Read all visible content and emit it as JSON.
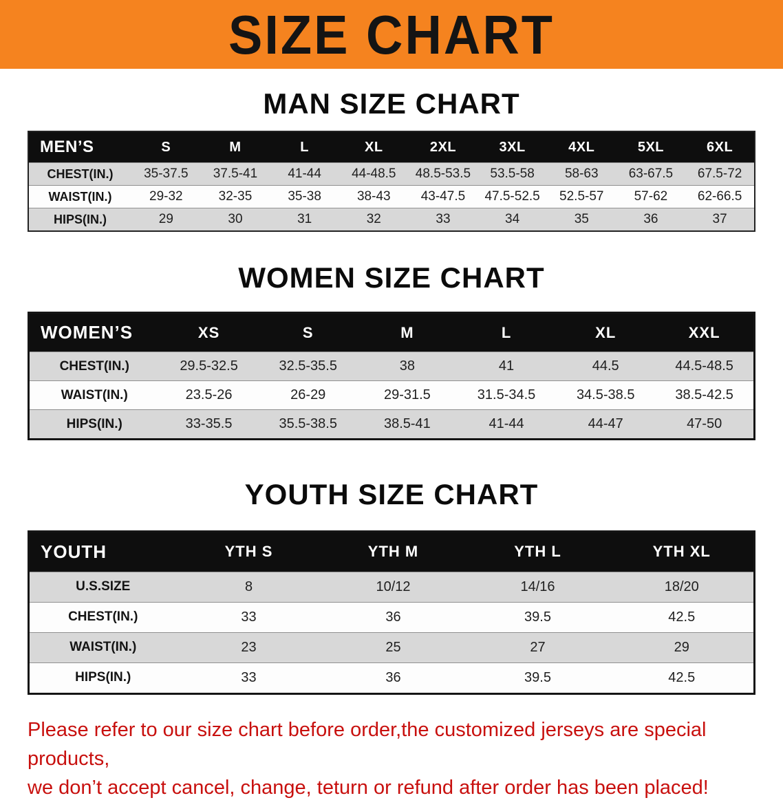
{
  "banner": {
    "title": "SIZE CHART",
    "bg_color": "#f5831f",
    "text_color": "#141414"
  },
  "colors": {
    "header_row_bg": "#0e0e0e",
    "header_row_text": "#ffffff",
    "stripe_gray": "#d8d8d8",
    "stripe_white": "#fdfdfd",
    "disclaimer_red": "#c8100e"
  },
  "sections": [
    {
      "heading": "MAN SIZE CHART",
      "table": {
        "header": [
          "MEN’S",
          "S",
          "M",
          "L",
          "XL",
          "2XL",
          "3XL",
          "4XL",
          "5XL",
          "6XL"
        ],
        "rows": [
          [
            "CHEST(IN.)",
            "35-37.5",
            "37.5-41",
            "41-44",
            "44-48.5",
            "48.5-53.5",
            "53.5-58",
            "58-63",
            "63-67.5",
            "67.5-72"
          ],
          [
            "WAIST(IN.)",
            "29-32",
            "32-35",
            "35-38",
            "38-43",
            "43-47.5",
            "47.5-52.5",
            "52.5-57",
            "57-62",
            "62-66.5"
          ],
          [
            "HIPS(IN.)",
            "29",
            "30",
            "31",
            "32",
            "33",
            "34",
            "35",
            "36",
            "37"
          ]
        ]
      }
    },
    {
      "heading": "WOMEN SIZE CHART",
      "table": {
        "header": [
          "WOMEN’S",
          "XS",
          "S",
          "M",
          "L",
          "XL",
          "XXL"
        ],
        "rows": [
          [
            "CHEST(IN.)",
            "29.5-32.5",
            "32.5-35.5",
            "38",
            "41",
            "44.5",
            "44.5-48.5"
          ],
          [
            "WAIST(IN.)",
            "23.5-26",
            "26-29",
            "29-31.5",
            "31.5-34.5",
            "34.5-38.5",
            "38.5-42.5"
          ],
          [
            "HIPS(IN.)",
            "33-35.5",
            "35.5-38.5",
            "38.5-41",
            "41-44",
            "44-47",
            "47-50"
          ]
        ]
      }
    },
    {
      "heading": "YOUTH SIZE CHART",
      "table": {
        "header": [
          "YOUTH",
          "YTH S",
          "YTH M",
          "YTH L",
          "YTH XL"
        ],
        "rows": [
          [
            "U.S.SIZE",
            "8",
            "10/12",
            "14/16",
            "18/20"
          ],
          [
            "CHEST(IN.)",
            "33",
            "36",
            "39.5",
            "42.5"
          ],
          [
            "WAIST(IN.)",
            "23",
            "25",
            "27",
            "29"
          ],
          [
            "HIPS(IN.)",
            "33",
            "36",
            "39.5",
            "42.5"
          ]
        ]
      }
    }
  ],
  "footer": {
    "line1": "Please refer to our size chart before order,the customized jerseys are special products,",
    "line2": "we don’t accept cancel, change, teturn or refund after order has been placed!"
  }
}
